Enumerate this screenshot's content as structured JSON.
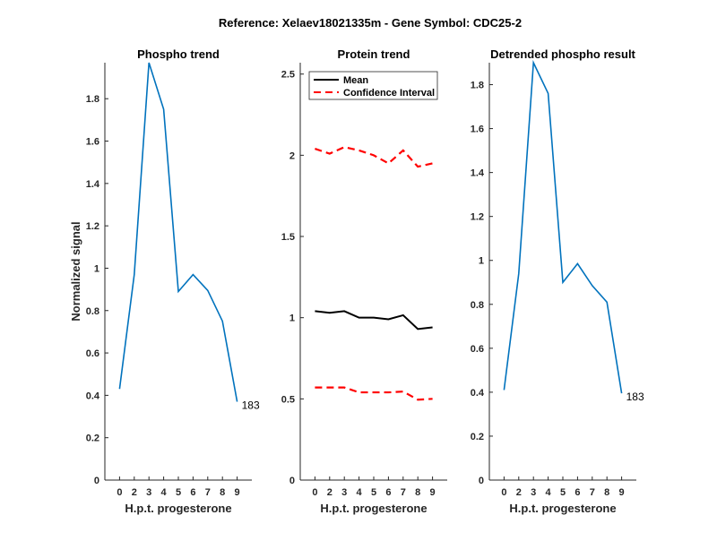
{
  "title": "Reference:  Xelaev18021335m - Gene Symbol:  CDC25-2",
  "chart_data": [
    {
      "type": "line",
      "title": "Phospho trend",
      "xlabel": "H.p.t. progesterone",
      "ylabel": "Normalized signal",
      "categories": [
        "0",
        "2",
        "3",
        "4",
        "5",
        "6",
        "7",
        "8",
        "9"
      ],
      "ylim": [
        0,
        1.97
      ],
      "yticks": [
        0,
        0.2,
        0.4,
        0.6,
        0.8,
        1,
        1.2,
        1.4,
        1.6,
        1.8
      ],
      "grid": false,
      "series": [
        {
          "values": [
            0.43,
            0.97,
            1.97,
            1.75,
            0.89,
            0.97,
            0.895,
            0.75,
            0.37
          ],
          "color": "#0072BD",
          "style": "solid"
        }
      ],
      "annotation": "183"
    },
    {
      "type": "line",
      "title": "Protein trend",
      "xlabel": "H.p.t. progesterone",
      "ylabel": "",
      "categories": [
        "0",
        "2",
        "3",
        "4",
        "5",
        "6",
        "7",
        "8",
        "9"
      ],
      "ylim": [
        0,
        2.57
      ],
      "yticks": [
        0,
        0.5,
        1,
        1.5,
        2,
        2.5
      ],
      "grid": false,
      "legend_position": "top",
      "series": [
        {
          "name": "Mean",
          "values": [
            1.04,
            1.03,
            1.04,
            1.0,
            1.0,
            0.99,
            1.015,
            0.93,
            0.94
          ],
          "color": "#000000",
          "style": "solid"
        },
        {
          "name": "Confidence Interval",
          "values": [
            2.04,
            2.01,
            2.05,
            2.03,
            2.0,
            1.95,
            2.03,
            1.93,
            1.95
          ],
          "color": "#FF0000",
          "style": "dashed"
        },
        {
          "values": [
            0.57,
            0.57,
            0.57,
            0.54,
            0.54,
            0.54,
            0.545,
            0.495,
            0.5
          ],
          "color": "#FF0000",
          "style": "dashed"
        }
      ]
    },
    {
      "type": "line",
      "title": "Detrended phospho result",
      "xlabel": "H.p.t. progesterone",
      "ylabel": "",
      "categories": [
        "0",
        "2",
        "3",
        "4",
        "5",
        "6",
        "7",
        "8",
        "9"
      ],
      "ylim": [
        0,
        1.9
      ],
      "yticks": [
        0,
        0.2,
        0.4,
        0.6,
        0.8,
        1,
        1.2,
        1.4,
        1.6,
        1.8
      ],
      "grid": false,
      "series": [
        {
          "values": [
            0.41,
            0.94,
            1.9,
            1.76,
            0.9,
            0.985,
            0.885,
            0.81,
            0.395
          ],
          "color": "#0072BD",
          "style": "solid"
        }
      ],
      "annotation": "183"
    }
  ]
}
